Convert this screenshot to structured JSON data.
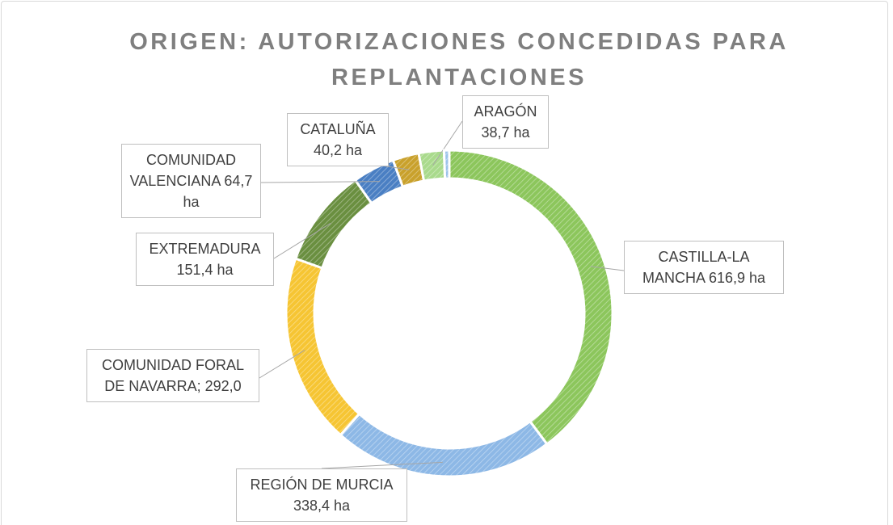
{
  "chart_data": {
    "type": "doughnut",
    "title": "ORIGEN: AUTORIZACIONES CONCEDIDAS PARA REPLANTACIONES",
    "values": [
      616.9,
      338.4,
      292.0,
      151.4,
      64.7,
      40.2,
      38.7,
      8
    ],
    "value_labels": [
      "CASTILLA-LA MANCHA 616,9 ha",
      "REGIÓN DE MURCIA 338,4 ha",
      "COMUNIDAD FORAL DE NAVARRA; 292,0",
      "EXTREMADURA 151,4 ha",
      "COMUNIDAD VALENCIANA 64,7 ha",
      "CATALUÑA 40,2 ha",
      "ARAGÓN 38,7 ha",
      null
    ],
    "colors": [
      "#8cc65c",
      "#8db8e6",
      "#f6c533",
      "#6a8f40",
      "#4a7fc3",
      "#c9a12c",
      "#a9da8c",
      "#9cc3ea"
    ],
    "hatch": true
  }
}
